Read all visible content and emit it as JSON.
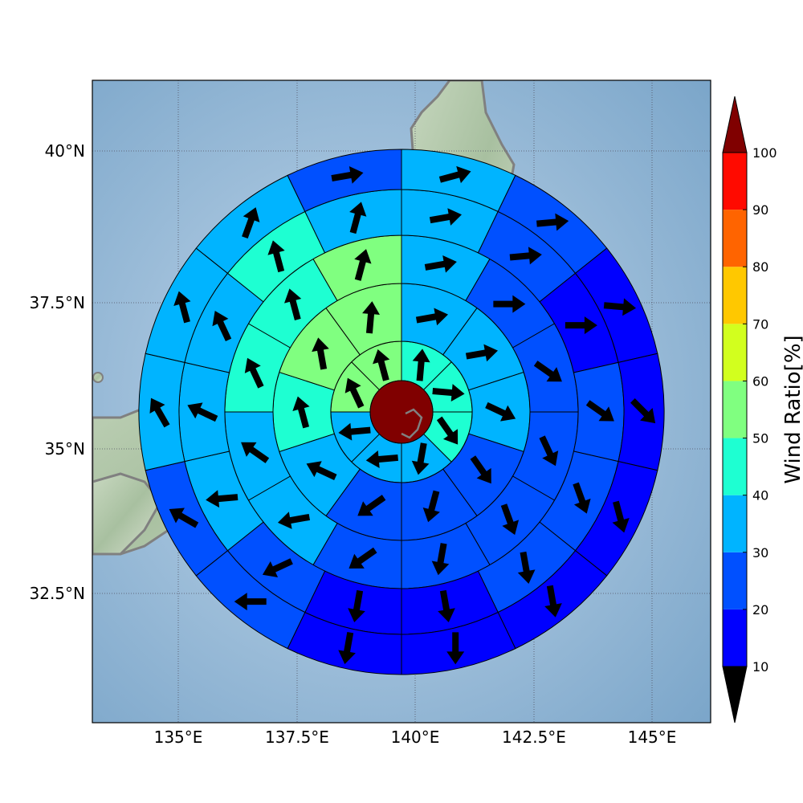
{
  "chart_data": {
    "type": "polar-sector-wind-map",
    "colorbar": {
      "label": "Wind Ratio[%]",
      "ticks": [
        "10",
        "20",
        "30",
        "40",
        "50",
        "60",
        "70",
        "80",
        "90",
        "100"
      ],
      "bands": [
        {
          "from": 10,
          "to": 20,
          "color": "#0000ff"
        },
        {
          "from": 20,
          "to": 30,
          "color": "#0050ff"
        },
        {
          "from": 30,
          "to": 40,
          "color": "#00b4ff"
        },
        {
          "from": 40,
          "to": 50,
          "color": "#1effd2"
        },
        {
          "from": 50,
          "to": 60,
          "color": "#80ff80"
        },
        {
          "from": 60,
          "to": 70,
          "color": "#d2ff1e"
        },
        {
          "from": 70,
          "to": 80,
          "color": "#ffc800"
        },
        {
          "from": 80,
          "to": 90,
          "color": "#ff6400"
        },
        {
          "from": 90,
          "to": 100,
          "color": "#ff0a00"
        }
      ],
      "under_color": "#00008b",
      "over_color": "#800000"
    },
    "lon_ticks": [
      "135°E",
      "137.5°E",
      "140°E",
      "142.5°E",
      "145°E"
    ],
    "lat_ticks": [
      "40°N",
      "37.5°N",
      "35°N",
      "32.5°N"
    ],
    "center": {
      "lon": 139.75,
      "lat": 35.7,
      "color": "#800000"
    },
    "rings": [
      {
        "name": "ring-1",
        "cells": [
          {
            "value": 46,
            "dir": 5
          },
          {
            "value": 46,
            "dir": 95
          },
          {
            "value": 46,
            "dir": 145
          },
          {
            "value": 35,
            "dir": 190
          },
          {
            "value": 35,
            "dir": 265
          },
          {
            "value": 35,
            "dir": 265
          },
          {
            "value": 55,
            "dir": 335
          },
          {
            "value": 55,
            "dir": 345
          }
        ]
      },
      {
        "name": "ring-2",
        "cells": [
          {
            "value": 35,
            "dir": 80
          },
          {
            "value": 35,
            "dir": 80
          },
          {
            "value": 35,
            "dir": 115
          },
          {
            "value": 25,
            "dir": 145
          },
          {
            "value": 25,
            "dir": 195
          },
          {
            "value": 25,
            "dir": 235
          },
          {
            "value": 35,
            "dir": 295
          },
          {
            "value": 46,
            "dir": 345
          },
          {
            "value": 55,
            "dir": 350
          },
          {
            "value": 55,
            "dir": 5
          }
        ]
      },
      {
        "name": "ring-3",
        "cells": [
          {
            "value": 35,
            "dir": 80
          },
          {
            "value": 25,
            "dir": 90
          },
          {
            "value": 25,
            "dir": 125
          },
          {
            "value": 25,
            "dir": 155
          },
          {
            "value": 25,
            "dir": 160
          },
          {
            "value": 25,
            "dir": 190
          },
          {
            "value": 25,
            "dir": 235
          },
          {
            "value": 35,
            "dir": 260
          },
          {
            "value": 35,
            "dir": 305
          },
          {
            "value": 46,
            "dir": 335
          },
          {
            "value": 46,
            "dir": 345
          },
          {
            "value": 55,
            "dir": 15
          }
        ]
      },
      {
        "name": "ring-4",
        "cells": [
          {
            "value": 35,
            "dir": 80
          },
          {
            "value": 25,
            "dir": 85
          },
          {
            "value": 15,
            "dir": 90
          },
          {
            "value": 25,
            "dir": 125
          },
          {
            "value": 25,
            "dir": 160
          },
          {
            "value": 25,
            "dir": 170
          },
          {
            "value": 15,
            "dir": 170
          },
          {
            "value": 15,
            "dir": 190
          },
          {
            "value": 25,
            "dir": 245
          },
          {
            "value": 35,
            "dir": 265
          },
          {
            "value": 35,
            "dir": 295
          },
          {
            "value": 35,
            "dir": 335
          },
          {
            "value": 46,
            "dir": 345
          },
          {
            "value": 35,
            "dir": 15
          }
        ]
      },
      {
        "name": "ring-5",
        "cells": [
          {
            "value": 35,
            "dir": 75
          },
          {
            "value": 25,
            "dir": 85
          },
          {
            "value": 15,
            "dir": 95
          },
          {
            "value": 15,
            "dir": 135
          },
          {
            "value": 15,
            "dir": 165
          },
          {
            "value": 15,
            "dir": 170
          },
          {
            "value": 15,
            "dir": 180
          },
          {
            "value": 15,
            "dir": 190
          },
          {
            "value": 25,
            "dir": 270
          },
          {
            "value": 25,
            "dir": 300
          },
          {
            "value": 35,
            "dir": 330
          },
          {
            "value": 35,
            "dir": 345
          },
          {
            "value": 35,
            "dir": 20
          },
          {
            "value": 25,
            "dir": 80
          }
        ]
      },
      {
        "name": "ring-6",
        "cells": [
          {
            "value": 35,
            "dir": 70
          },
          {
            "value": 25,
            "dir": 90
          },
          {
            "value": 15,
            "dir": 100
          },
          {
            "value": 15,
            "dir": 150
          },
          {
            "value": 15,
            "dir": 165
          },
          {
            "value": 15,
            "dir": 175
          },
          {
            "value": 15,
            "dir": 175
          },
          {
            "value": 15,
            "dir": 195
          },
          {
            "value": 15,
            "dir": 235
          },
          {
            "value": 25,
            "dir": 270
          },
          {
            "value": 25,
            "dir": 300
          },
          {
            "value": 35,
            "dir": 330
          },
          {
            "value": 35,
            "dir": 345
          },
          {
            "value": 35,
            "dir": 15
          },
          {
            "value": 35,
            "dir": 25
          },
          {
            "value": 25,
            "dir": 85
          }
        ]
      }
    ]
  }
}
